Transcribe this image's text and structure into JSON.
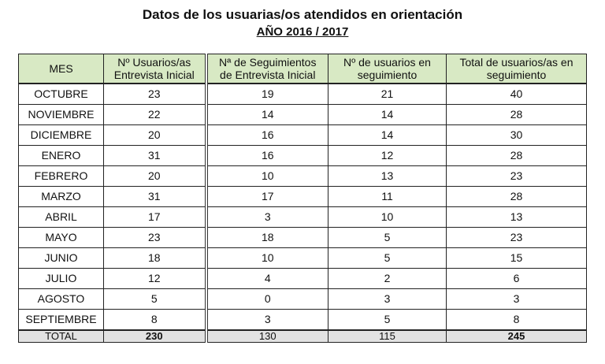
{
  "title": "Datos de los usuarias/os atendidos en orientación",
  "subtitle": "AÑO 2016 / 2017",
  "headers": {
    "mes": "MES",
    "h1_line1": "Nº Usuarios/as",
    "h1_line2": "Entrevista Inicial",
    "h2_line1": "Nª de Seguimientos",
    "h2_line2": "de Entrevista Inicial",
    "h3_line1": "Nº de usuarios en",
    "h3_line2": "seguimiento",
    "h4_line1": "Total de usuarios/as en",
    "h4_line2": "seguimiento"
  },
  "rows": [
    {
      "mes": "OCTUBRE",
      "c1": "23",
      "c2": "19",
      "c3": "21",
      "c4": "40"
    },
    {
      "mes": "NOVIEMBRE",
      "c1": "22",
      "c2": "14",
      "c3": "14",
      "c4": "28"
    },
    {
      "mes": "DICIEMBRE",
      "c1": "20",
      "c2": "16",
      "c3": "14",
      "c4": "30"
    },
    {
      "mes": "ENERO",
      "c1": "31",
      "c2": "16",
      "c3": "12",
      "c4": "28"
    },
    {
      "mes": "FEBRERO",
      "c1": "20",
      "c2": "10",
      "c3": "13",
      "c4": "23"
    },
    {
      "mes": "MARZO",
      "c1": "31",
      "c2": "17",
      "c3": "11",
      "c4": "28"
    },
    {
      "mes": "ABRIL",
      "c1": "17",
      "c2": "3",
      "c3": "10",
      "c4": "13"
    },
    {
      "mes": "MAYO",
      "c1": "23",
      "c2": "18",
      "c3": "5",
      "c4": "23"
    },
    {
      "mes": "JUNIO",
      "c1": "18",
      "c2": "10",
      "c3": "5",
      "c4": "15"
    },
    {
      "mes": "JULIO",
      "c1": "12",
      "c2": "4",
      "c3": "2",
      "c4": "6"
    },
    {
      "mes": "AGOSTO",
      "c1": "5",
      "c2": "0",
      "c3": "3",
      "c4": "3"
    },
    {
      "mes": "SEPTIEMBRE",
      "c1": "8",
      "c2": "3",
      "c3": "5",
      "c4": "8"
    }
  ],
  "total": {
    "mes": "TOTAL",
    "c1": "230",
    "c2": "130",
    "c3": "115",
    "c4": "245"
  },
  "colors": {
    "header_bg": "#d8e9c4",
    "total_bg": "#e2e2e2"
  }
}
